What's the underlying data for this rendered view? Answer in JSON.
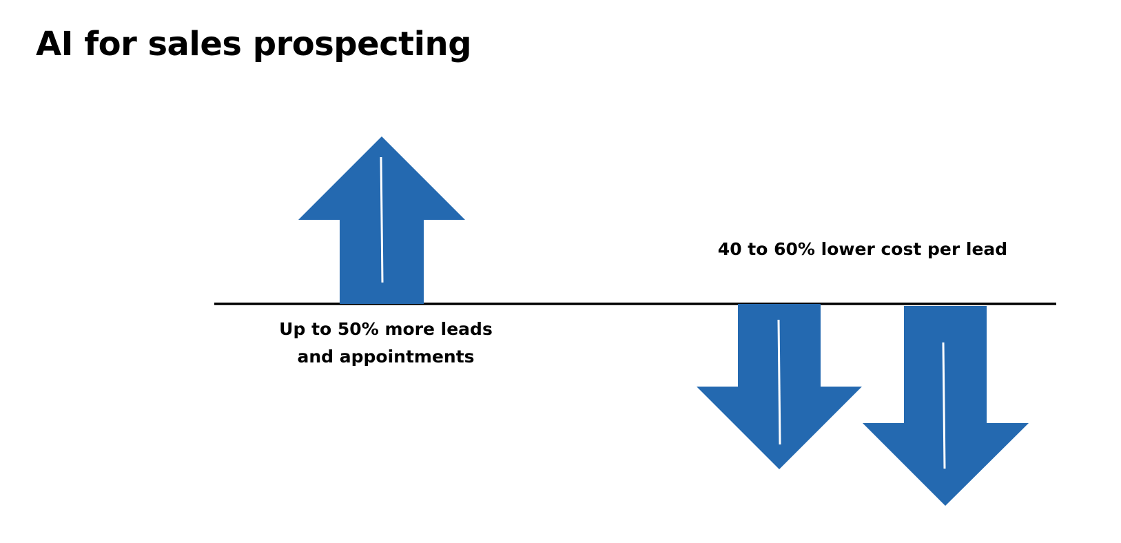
{
  "title": "AI for sales prospecting",
  "up_metric": {
    "line1": "Up to 50% more leads",
    "line2": "and appointments",
    "direction": "up"
  },
  "down_metric": {
    "text": "40 to 60% lower cost per lead",
    "direction": "down"
  },
  "colors": {
    "arrow": "#2469b0",
    "arrow_stripe": "#ffffff",
    "baseline": "#000000",
    "text": "#000000"
  }
}
